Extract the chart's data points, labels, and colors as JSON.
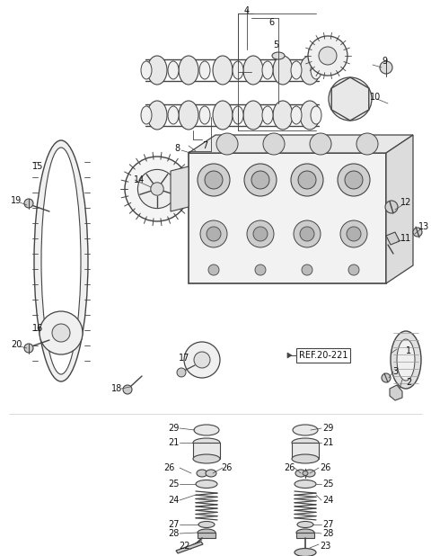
{
  "bg_color": "#ffffff",
  "fig_width": 4.8,
  "fig_height": 6.18,
  "dpi": 100,
  "line_color": "#444444",
  "text_color": "#111111",
  "font_size": 7.0,
  "ref_text": "REF.20-221"
}
